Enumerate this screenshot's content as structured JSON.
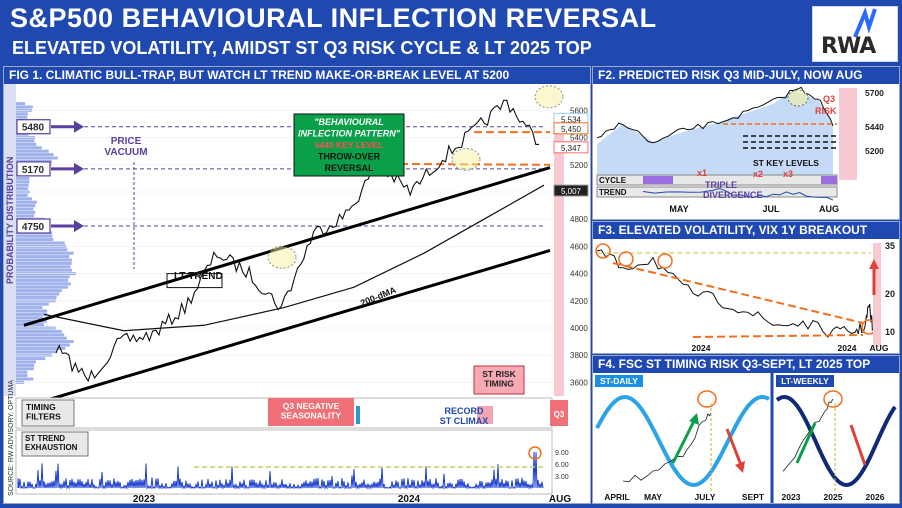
{
  "header": {
    "title": "S&P500 BEHAVIOURAL INFLECTION REVERSAL",
    "subtitle": "ELEVATED VOLATILITY, AMIDST ST Q3 RISK CYCLE & LT 2025 TOP",
    "logo": "RWA"
  },
  "colors": {
    "header_bg": "#1f49b0",
    "title_text": "#ffffff",
    "accent_orange": "#f07020",
    "red": "#e0403a",
    "green": "#0aa04a",
    "purple": "#6b3fb0",
    "light_blue": "#4aa8ff"
  },
  "fig1": {
    "title": "FIG 1. CLIMATIC BULL-TRAP, BUT WATCH LT TREND MAKE-OR-BREAK LEVEL AT 5200",
    "ylabel_left": "PROBABILITY DISTRIBUTION",
    "source": "SOURCE: RW ADVISORY, OPTUMA",
    "levels": [
      "5480",
      "5170",
      "4750"
    ],
    "price_vacuum": "PRICE\nVACUUM",
    "pattern_box": {
      "line1": "\"BEHAVIOURAL",
      "line2": "INFLECTION PATTERN\"",
      "line3": "5440 KEY LEVEL",
      "line4": "THROW-OVER",
      "line5": "REVERSAL"
    },
    "lt_trend_label": "LT TREND",
    "dma_label": "200-dMA",
    "st_risk_label": "ST RISK\nTIMING",
    "right_axis": [
      "5600",
      "5400",
      "5200",
      "5000",
      "4800",
      "4600",
      "4400",
      "4200",
      "4000",
      "3800",
      "3600"
    ],
    "price_tags": [
      "5,534",
      "5,450",
      "5,347",
      "5,007"
    ],
    "x_labels": [
      "2023",
      "2024",
      "AUG"
    ],
    "timing_filters": "TIMING\nFILTERS",
    "q3_seasonality": "Q3 NEGATIVE\nSEASONALITY",
    "q3_tag": "Q3",
    "st_trend_exhaustion": "ST TREND\nEXHAUSTION",
    "record_climax": "RECORD\nST CLIMAX",
    "osc_axis": [
      "9.00",
      "6.00",
      "3.00"
    ]
  },
  "chart_data": [
    {
      "type": "line",
      "title": "FIG 1. CLIMATIC BULL-TRAP, BUT WATCH LT TREND MAKE-OR-BREAK LEVEL AT 5200",
      "series": [
        {
          "name": "S&P500",
          "x": [
            "2022-07",
            "2022-10",
            "2023-01",
            "2023-03",
            "2023-05",
            "2023-07",
            "2023-08",
            "2023-10",
            "2023-12",
            "2024-01",
            "2024-03",
            "2024-04",
            "2024-05",
            "2024-06",
            "2024-07",
            "2024-08"
          ],
          "values": [
            3850,
            3620,
            3900,
            3950,
            4150,
            4550,
            4400,
            4150,
            4700,
            4830,
            5200,
            5000,
            5250,
            5450,
            5670,
            5350
          ]
        }
      ],
      "ylim": [
        3500,
        5750
      ],
      "levels": [
        5480,
        5170,
        4750,
        5200
      ]
    },
    {
      "type": "line",
      "title": "F2. PREDICTED RISK Q3 MID-JULY, NOW AUG",
      "x_labels": [
        "MAY",
        "JUL",
        "AUG"
      ],
      "y_ticks": [
        "5700",
        "5440",
        "5200"
      ],
      "annotations": [
        "Q3",
        "RISK",
        "ST KEY LEVELS",
        "CYCLE",
        "TREND",
        "x1",
        "x2",
        "x3",
        "TRIPLE",
        "DIVERGENCE"
      ]
    },
    {
      "type": "line",
      "title": "F3. ELEVATED VOLATILITY, VIX 1Y BREAKOUT",
      "x_labels": [
        "2024",
        "2024",
        "AUG"
      ],
      "y_ticks": [
        "35",
        "20",
        "10"
      ]
    },
    {
      "type": "line",
      "title": "F4. FSC ST TIMING RISK Q3-SEPT, LT 2025 TOP",
      "panels": [
        {
          "name": "ST-DAILY",
          "x_labels": [
            "APRIL",
            "MAY",
            "JULY",
            "SEPT"
          ]
        },
        {
          "name": "LT-WEEKLY",
          "x_labels": [
            "2023",
            "2025",
            "2026"
          ]
        }
      ]
    }
  ]
}
